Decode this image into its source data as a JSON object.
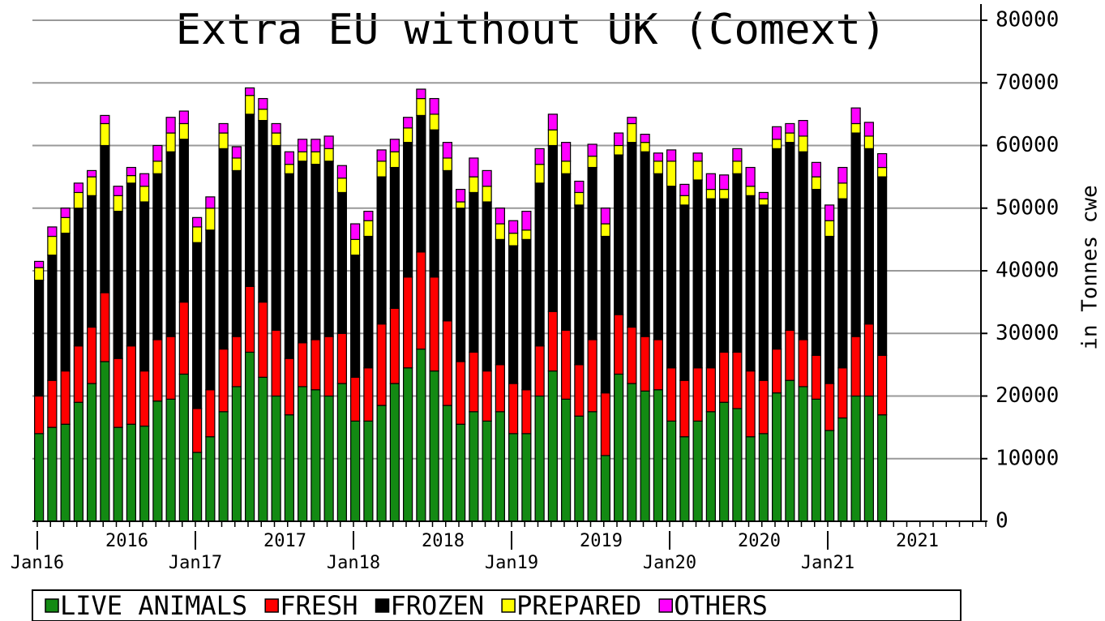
{
  "chart_data": {
    "type": "bar",
    "stacked": true,
    "title": "Extra EU without UK (Comext)",
    "y_axis_label": "in Tonnes cwe",
    "y_axis_side": "right",
    "ylim": [
      0,
      80000
    ],
    "yticks": [
      0,
      10000,
      20000,
      30000,
      40000,
      50000,
      60000,
      70000,
      80000
    ],
    "grid": true,
    "legend_position": "bottom",
    "categories": [
      "Jan16",
      null,
      null,
      null,
      null,
      null,
      null,
      null,
      null,
      null,
      null,
      null,
      "Jan17",
      null,
      null,
      null,
      null,
      null,
      null,
      null,
      null,
      null,
      null,
      null,
      "Jan18",
      null,
      null,
      null,
      null,
      null,
      null,
      null,
      null,
      null,
      null,
      null,
      "Jan19",
      null,
      null,
      null,
      null,
      null,
      null,
      null,
      null,
      null,
      null,
      null,
      "Jan20",
      null,
      null,
      null,
      null,
      null,
      null,
      null,
      null,
      null,
      null,
      null,
      "Jan21",
      null,
      null,
      null,
      null,
      null,
      null,
      null,
      null,
      null,
      null,
      null
    ],
    "year_labels": [
      "2016",
      "2017",
      "2018",
      "2019",
      "2020",
      "2021"
    ],
    "series": [
      {
        "name": "LIVE ANIMALS",
        "color": "#138a13",
        "values": [
          14000,
          15000,
          15500,
          19000,
          22000,
          25500,
          15000,
          15500,
          15200,
          19200,
          19500,
          23500,
          11000,
          13500,
          17500,
          21500,
          27000,
          23000,
          20000,
          17000,
          21500,
          21000,
          20000,
          22000,
          16000,
          16000,
          18500,
          22000,
          24500,
          27500,
          24000,
          18500,
          15500,
          17500,
          16000,
          17500,
          14000,
          14000,
          20000,
          24000,
          19500,
          16800,
          17500,
          10500,
          23500,
          22000,
          20800,
          21000,
          16000,
          13500,
          16000,
          17500,
          19000,
          18000,
          13500,
          14000,
          20500,
          22500,
          21500,
          19500,
          14500,
          16500,
          20000,
          20000,
          17000,
          null,
          null,
          null,
          null,
          null,
          null,
          null
        ]
      },
      {
        "name": "FRESH",
        "color": "#ff0000",
        "values": [
          6000,
          7500,
          8500,
          9000,
          9000,
          11000,
          11000,
          12500,
          8800,
          9800,
          10000,
          11500,
          7000,
          7500,
          10000,
          8000,
          10500,
          12000,
          10500,
          9000,
          7000,
          8000,
          9500,
          8000,
          7000,
          8500,
          13000,
          12000,
          14500,
          15500,
          15000,
          13500,
          10000,
          9500,
          8000,
          7500,
          8000,
          7000,
          8000,
          9500,
          11000,
          8200,
          11500,
          10000,
          9500,
          9000,
          8700,
          8000,
          8500,
          9000,
          8500,
          7000,
          8000,
          9000,
          10500,
          8500,
          7000,
          8000,
          7500,
          7000,
          7500,
          8000,
          9500,
          11500,
          9500,
          null,
          null,
          null,
          null,
          null,
          null,
          null
        ]
      },
      {
        "name": "FROZEN",
        "color": "#000000",
        "values": [
          18500,
          20000,
          22000,
          22000,
          21000,
          23500,
          23500,
          26000,
          27000,
          26500,
          29500,
          26000,
          26500,
          25500,
          32000,
          26500,
          27500,
          29000,
          29500,
          29500,
          29000,
          28000,
          28000,
          22500,
          19500,
          21000,
          23500,
          22500,
          21500,
          21800,
          23500,
          24000,
          24500,
          25500,
          27000,
          20000,
          22000,
          24000,
          26000,
          26500,
          25000,
          25500,
          27500,
          25000,
          25500,
          29500,
          29500,
          26500,
          29000,
          28000,
          30000,
          27000,
          24500,
          28500,
          28000,
          28000,
          32000,
          30000,
          30000,
          26500,
          23500,
          27000,
          32500,
          28000,
          28500,
          null,
          null,
          null,
          null,
          null,
          null,
          null
        ]
      },
      {
        "name": "PREPARED",
        "color": "#ffff00",
        "values": [
          2000,
          3000,
          2500,
          2500,
          3000,
          3500,
          2500,
          1200,
          2500,
          2000,
          3000,
          2500,
          2500,
          3500,
          2500,
          2000,
          3000,
          1800,
          2000,
          1500,
          1500,
          2000,
          2000,
          2300,
          2500,
          2500,
          2500,
          2500,
          2300,
          2700,
          2500,
          2000,
          1000,
          2500,
          2500,
          2500,
          2000,
          1500,
          3000,
          2500,
          2000,
          2000,
          1800,
          2000,
          1500,
          3000,
          1500,
          2000,
          4000,
          1500,
          3000,
          1500,
          1500,
          2000,
          1500,
          1000,
          1500,
          1500,
          2500,
          2000,
          2500,
          2500,
          1500,
          2000,
          1500,
          null,
          null,
          null,
          null,
          null,
          null,
          null
        ]
      },
      {
        "name": "OTHERS",
        "color": "#ff00ff",
        "values": [
          1000,
          1500,
          1500,
          1500,
          1000,
          1300,
          1500,
          1300,
          2000,
          2500,
          2500,
          2000,
          1500,
          1800,
          1500,
          1800,
          1200,
          1700,
          1500,
          2000,
          2000,
          2000,
          2000,
          2000,
          2500,
          1500,
          1800,
          2000,
          1700,
          1500,
          2500,
          2500,
          2000,
          3000,
          2500,
          2500,
          2000,
          3000,
          2500,
          2500,
          3000,
          1800,
          1900,
          2500,
          2000,
          1000,
          1300,
          1300,
          1800,
          1800,
          1300,
          2500,
          2300,
          2000,
          3000,
          1000,
          2000,
          1500,
          2500,
          2300,
          2500,
          2500,
          2500,
          2200,
          2200,
          null,
          null,
          null,
          null,
          null,
          null,
          null
        ]
      }
    ]
  }
}
